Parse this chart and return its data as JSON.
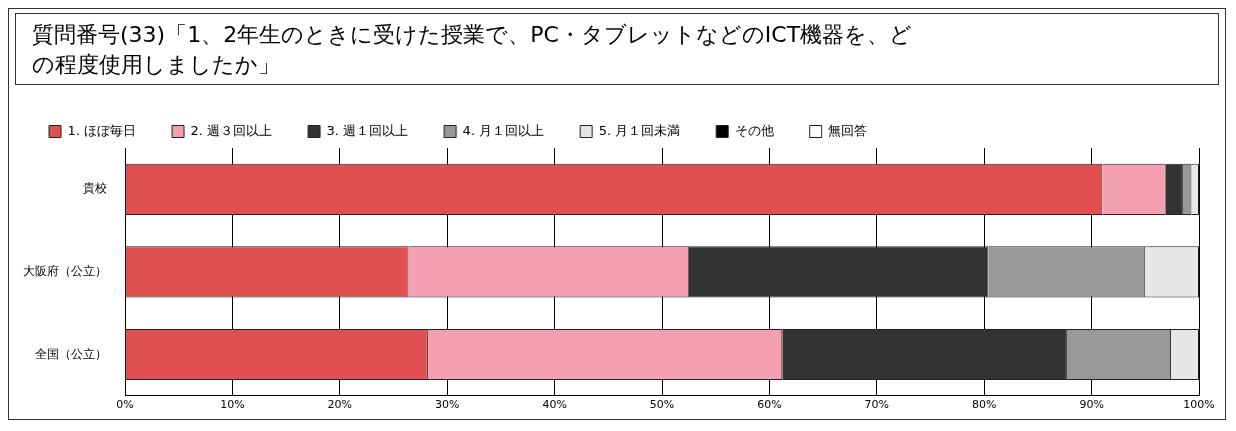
{
  "chart_data": {
    "type": "bar",
    "orientation": "horizontal",
    "stacked": true,
    "title": "質問番号(33)「1、2年生のときに受けた授業で、PC・タブレットなどのICT機器を、どの程度使用しましたか」",
    "categories": [
      "貴校",
      "大阪府（公立）",
      "全国（公立）"
    ],
    "series": [
      {
        "name": "1. ほぼ毎日",
        "color": "#e05050",
        "values": [
          91.0,
          26.4,
          28.2
        ]
      },
      {
        "name": "2. 週３回以上",
        "color": "#f4a0b0",
        "values": [
          5.9,
          26.1,
          33.0
        ]
      },
      {
        "name": "3. 週１回以上",
        "color": "#333333",
        "values": [
          1.6,
          27.9,
          26.5
        ]
      },
      {
        "name": "4. 月１回以上",
        "color": "#999999",
        "values": [
          0.8,
          14.6,
          9.7
        ]
      },
      {
        "name": "5. 月１回未満",
        "color": "#e6e6e6",
        "values": [
          0.7,
          5.0,
          2.6
        ]
      },
      {
        "name": "その他",
        "color": "#000000",
        "values": [
          0,
          0,
          0
        ]
      },
      {
        "name": "無回答",
        "color": "#ffffff",
        "values": [
          0,
          0,
          0
        ]
      }
    ],
    "xlim": [
      0,
      100
    ],
    "xticks": [
      {
        "value": 0,
        "label": "0%"
      },
      {
        "value": 10,
        "label": "10%"
      },
      {
        "value": 20,
        "label": "20%"
      },
      {
        "value": 30,
        "label": "30%"
      },
      {
        "value": 40,
        "label": "40%"
      },
      {
        "value": 50,
        "label": "50%"
      },
      {
        "value": 60,
        "label": "60%"
      },
      {
        "value": 70,
        "label": "70%"
      },
      {
        "value": 80,
        "label": "80%"
      },
      {
        "value": 90,
        "label": "90%"
      },
      {
        "value": 100,
        "label": "100%"
      }
    ],
    "grid": "x",
    "legend": "top"
  }
}
